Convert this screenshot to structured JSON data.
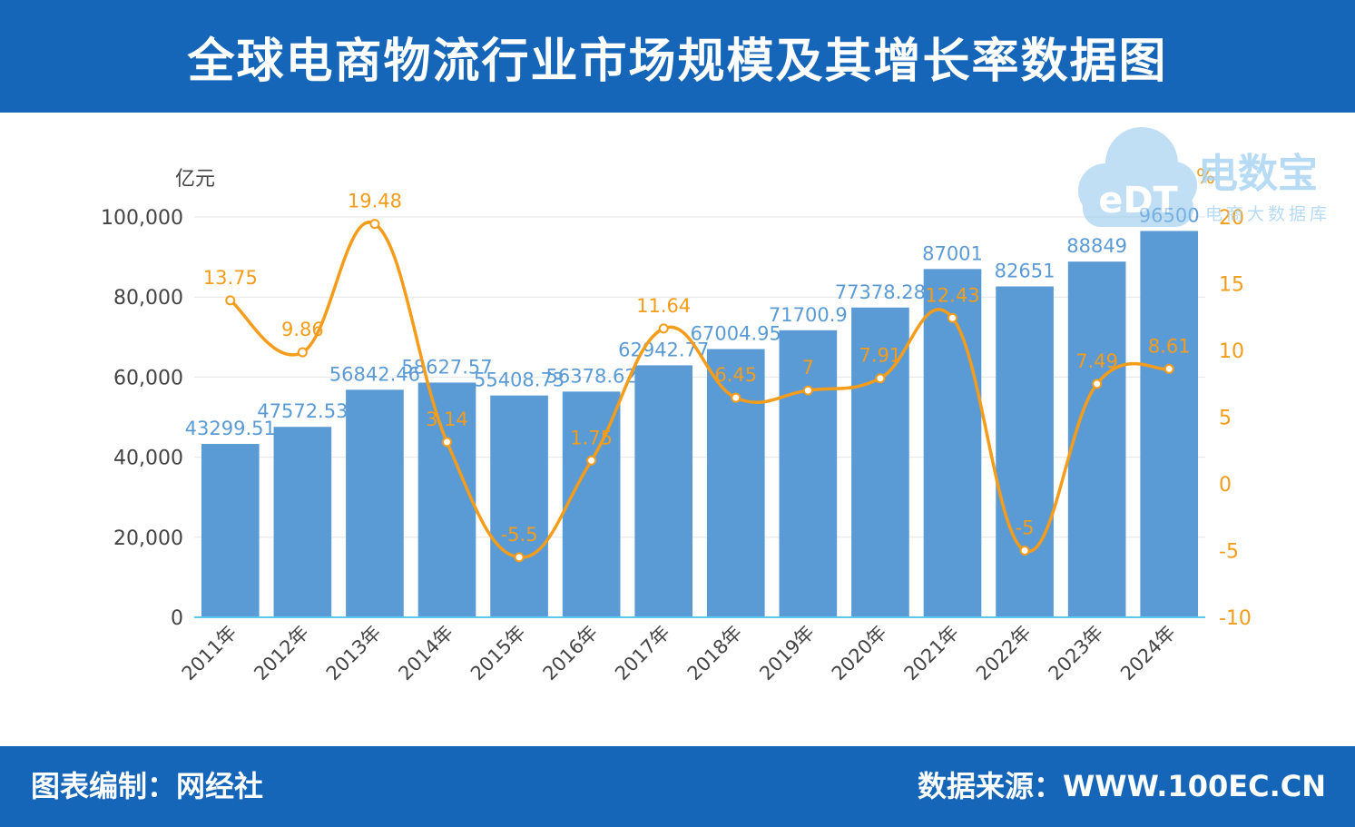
{
  "header": {
    "title": "全球电商物流行业市场规模及其增长率数据图"
  },
  "footer": {
    "left": "图表编制：网经社",
    "right": "数据来源：WWW.100EC.CN"
  },
  "watermark": {
    "logo_text": "eDT",
    "brand": "电数宝",
    "tagline": "电商大数据库"
  },
  "colors": {
    "bar": "#5b9bd5",
    "line": "#f59c1a",
    "band": "#1565b8",
    "bar_label": "#5b9bd5",
    "axis_text": "#444444",
    "grid": "#e6e6e6"
  },
  "chart_data": {
    "type": "bar",
    "title": "全球电商物流行业市场规模及其增长率数据图",
    "categories": [
      "2011年",
      "2012年",
      "2013年",
      "2014年",
      "2015年",
      "2016年",
      "2017年",
      "2018年",
      "2019年",
      "2020年",
      "2021年",
      "2022年",
      "2023年",
      "2024年"
    ],
    "y_left": {
      "unit": "亿元",
      "ticks": [
        "0",
        "20,000",
        "40,000",
        "60,000",
        "80,000",
        "100,000"
      ],
      "min": 0,
      "max": 100000
    },
    "y_right": {
      "unit": "%",
      "ticks": [
        "-10",
        "-5",
        "0",
        "5",
        "10",
        "15",
        "20"
      ],
      "min": -10,
      "max": 20
    },
    "series": [
      {
        "type": "bar",
        "axis": "left",
        "values": [
          43299.51,
          47572.53,
          56842.46,
          58627.57,
          55408.73,
          56378.62,
          62942.77,
          67004.95,
          71700.9,
          77378.28,
          87001,
          82651,
          88849,
          96500
        ],
        "labels": [
          "43299.51",
          "47572.53",
          "56842.46",
          "58627.57",
          "55408.73",
          "56378.62",
          "62942.77",
          "67004.95",
          "71700.9",
          "77378.28",
          "87001",
          "82651",
          "88849",
          "96500"
        ]
      },
      {
        "type": "line",
        "axis": "right",
        "values": [
          13.75,
          9.86,
          19.48,
          3.14,
          -5.5,
          1.75,
          11.64,
          6.45,
          7,
          7.91,
          12.43,
          -5,
          7.49,
          8.61
        ],
        "labels": [
          "13.75",
          "9.86",
          "19.48",
          "3.14",
          "-5.5",
          "1.75",
          "11.64",
          "6.45",
          "7",
          "7.91",
          "12.43",
          "-5",
          "7.49",
          "8.61"
        ]
      }
    ],
    "grid": true
  }
}
